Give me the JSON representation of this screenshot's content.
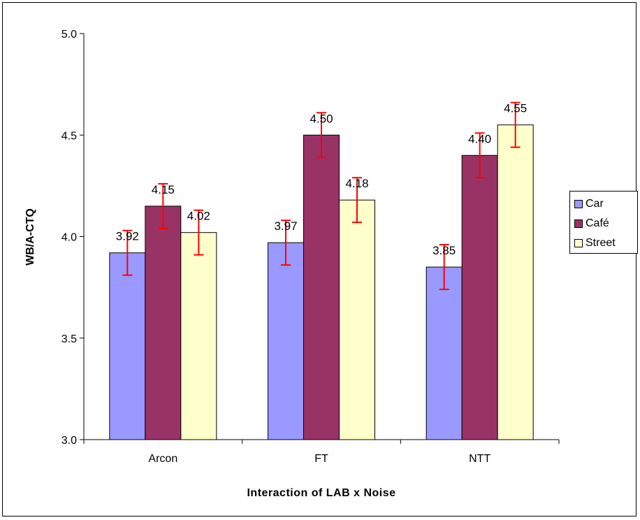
{
  "chart_data": {
    "type": "bar",
    "categories": [
      "Arcon",
      "FT",
      "NTT"
    ],
    "series": [
      {
        "name": "Car",
        "color": "#9999FF",
        "values": [
          3.92,
          3.97,
          3.85
        ],
        "labels": [
          "3.92",
          "3.97",
          "3.85"
        ],
        "error": [
          0.11,
          0.11,
          0.11
        ]
      },
      {
        "name": "Café",
        "color": "#993366",
        "values": [
          4.15,
          4.5,
          4.4
        ],
        "labels": [
          "4.15",
          "4.50",
          "4.40"
        ],
        "error": [
          0.11,
          0.11,
          0.11
        ]
      },
      {
        "name": "Street",
        "color": "#FFFFCC",
        "values": [
          4.02,
          4.18,
          4.55
        ],
        "labels": [
          "4.02",
          "4.18",
          "4.55"
        ],
        "error": [
          0.11,
          0.11,
          0.11
        ]
      }
    ],
    "error_bar_color": "#FF0000",
    "xlabel": "Interaction of LAB x Noise",
    "ylabel": "WB/A-CTQ",
    "ylim": [
      3.0,
      5.0
    ],
    "yticks": [
      "3.0",
      "3.5",
      "4.0",
      "4.5",
      "5.0"
    ],
    "grid": false,
    "legend_position": "right"
  }
}
